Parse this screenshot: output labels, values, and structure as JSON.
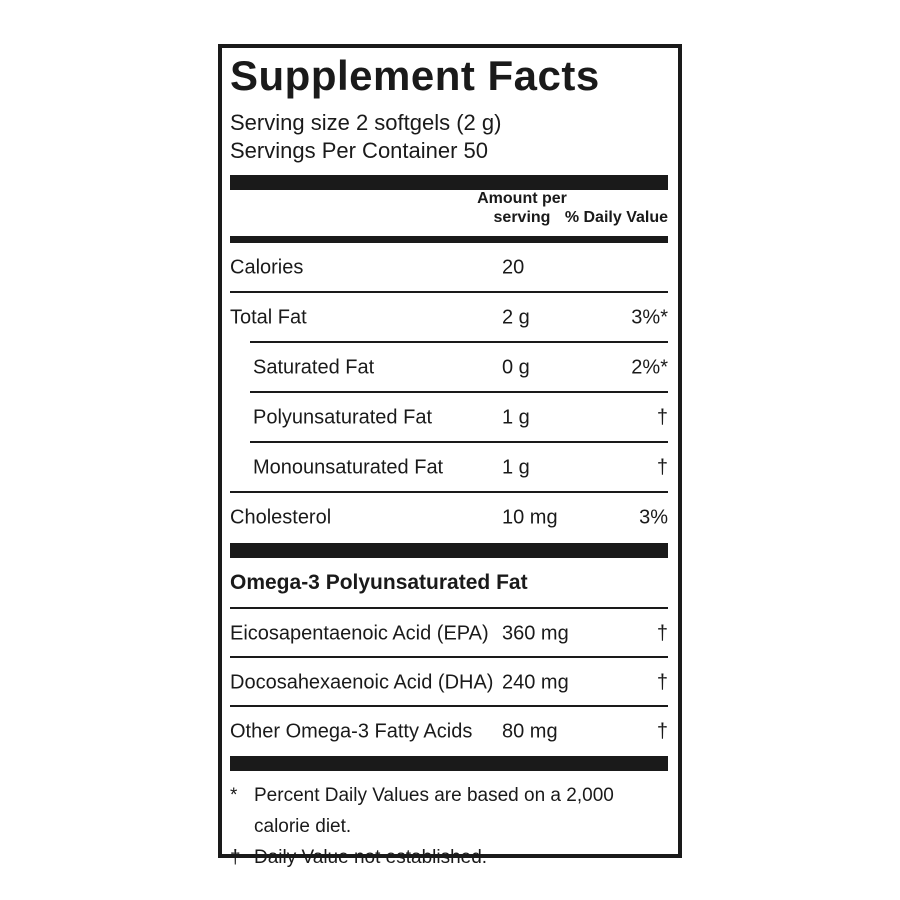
{
  "ink": "#1a1a1a",
  "label": {
    "title": "Supplement Facts",
    "serving_size": "Serving size 2 softgels (2 g)",
    "servings_per_container": "Servings Per Container 50",
    "header": {
      "amount_line1": "Amount per",
      "amount_line2": "serving",
      "daily_value": "% Daily Value"
    },
    "rows": [
      {
        "name": "Calories",
        "amount": "20",
        "dv": ""
      },
      {
        "name": "Total Fat",
        "amount": "2 g",
        "dv": "3%*"
      },
      {
        "name": "Saturated Fat",
        "amount": "0 g",
        "dv": "2%*"
      },
      {
        "name": "Polyunsaturated Fat",
        "amount": "1 g",
        "dv": "†"
      },
      {
        "name": "Monounsaturated Fat",
        "amount": "1 g",
        "dv": "†"
      },
      {
        "name": "Cholesterol",
        "amount": "10 mg",
        "dv": "3%"
      }
    ],
    "section": {
      "title": "Omega-3 Polyunsaturated Fat",
      "rows": [
        {
          "name": "Eicosapentaenoic Acid (EPA)",
          "amount": "360 mg",
          "dv": "†"
        },
        {
          "name": "Docosahexaenoic Acid (DHA)",
          "amount": "240 mg",
          "dv": "†"
        },
        {
          "name": "Other Omega-3 Fatty Acids",
          "amount": "80 mg",
          "dv": "†"
        }
      ]
    },
    "footnotes": [
      {
        "marker": "*",
        "text": "Percent Daily Values are based on a 2,000 calorie diet."
      },
      {
        "marker": "†",
        "text": "Daily Value not established."
      }
    ]
  }
}
